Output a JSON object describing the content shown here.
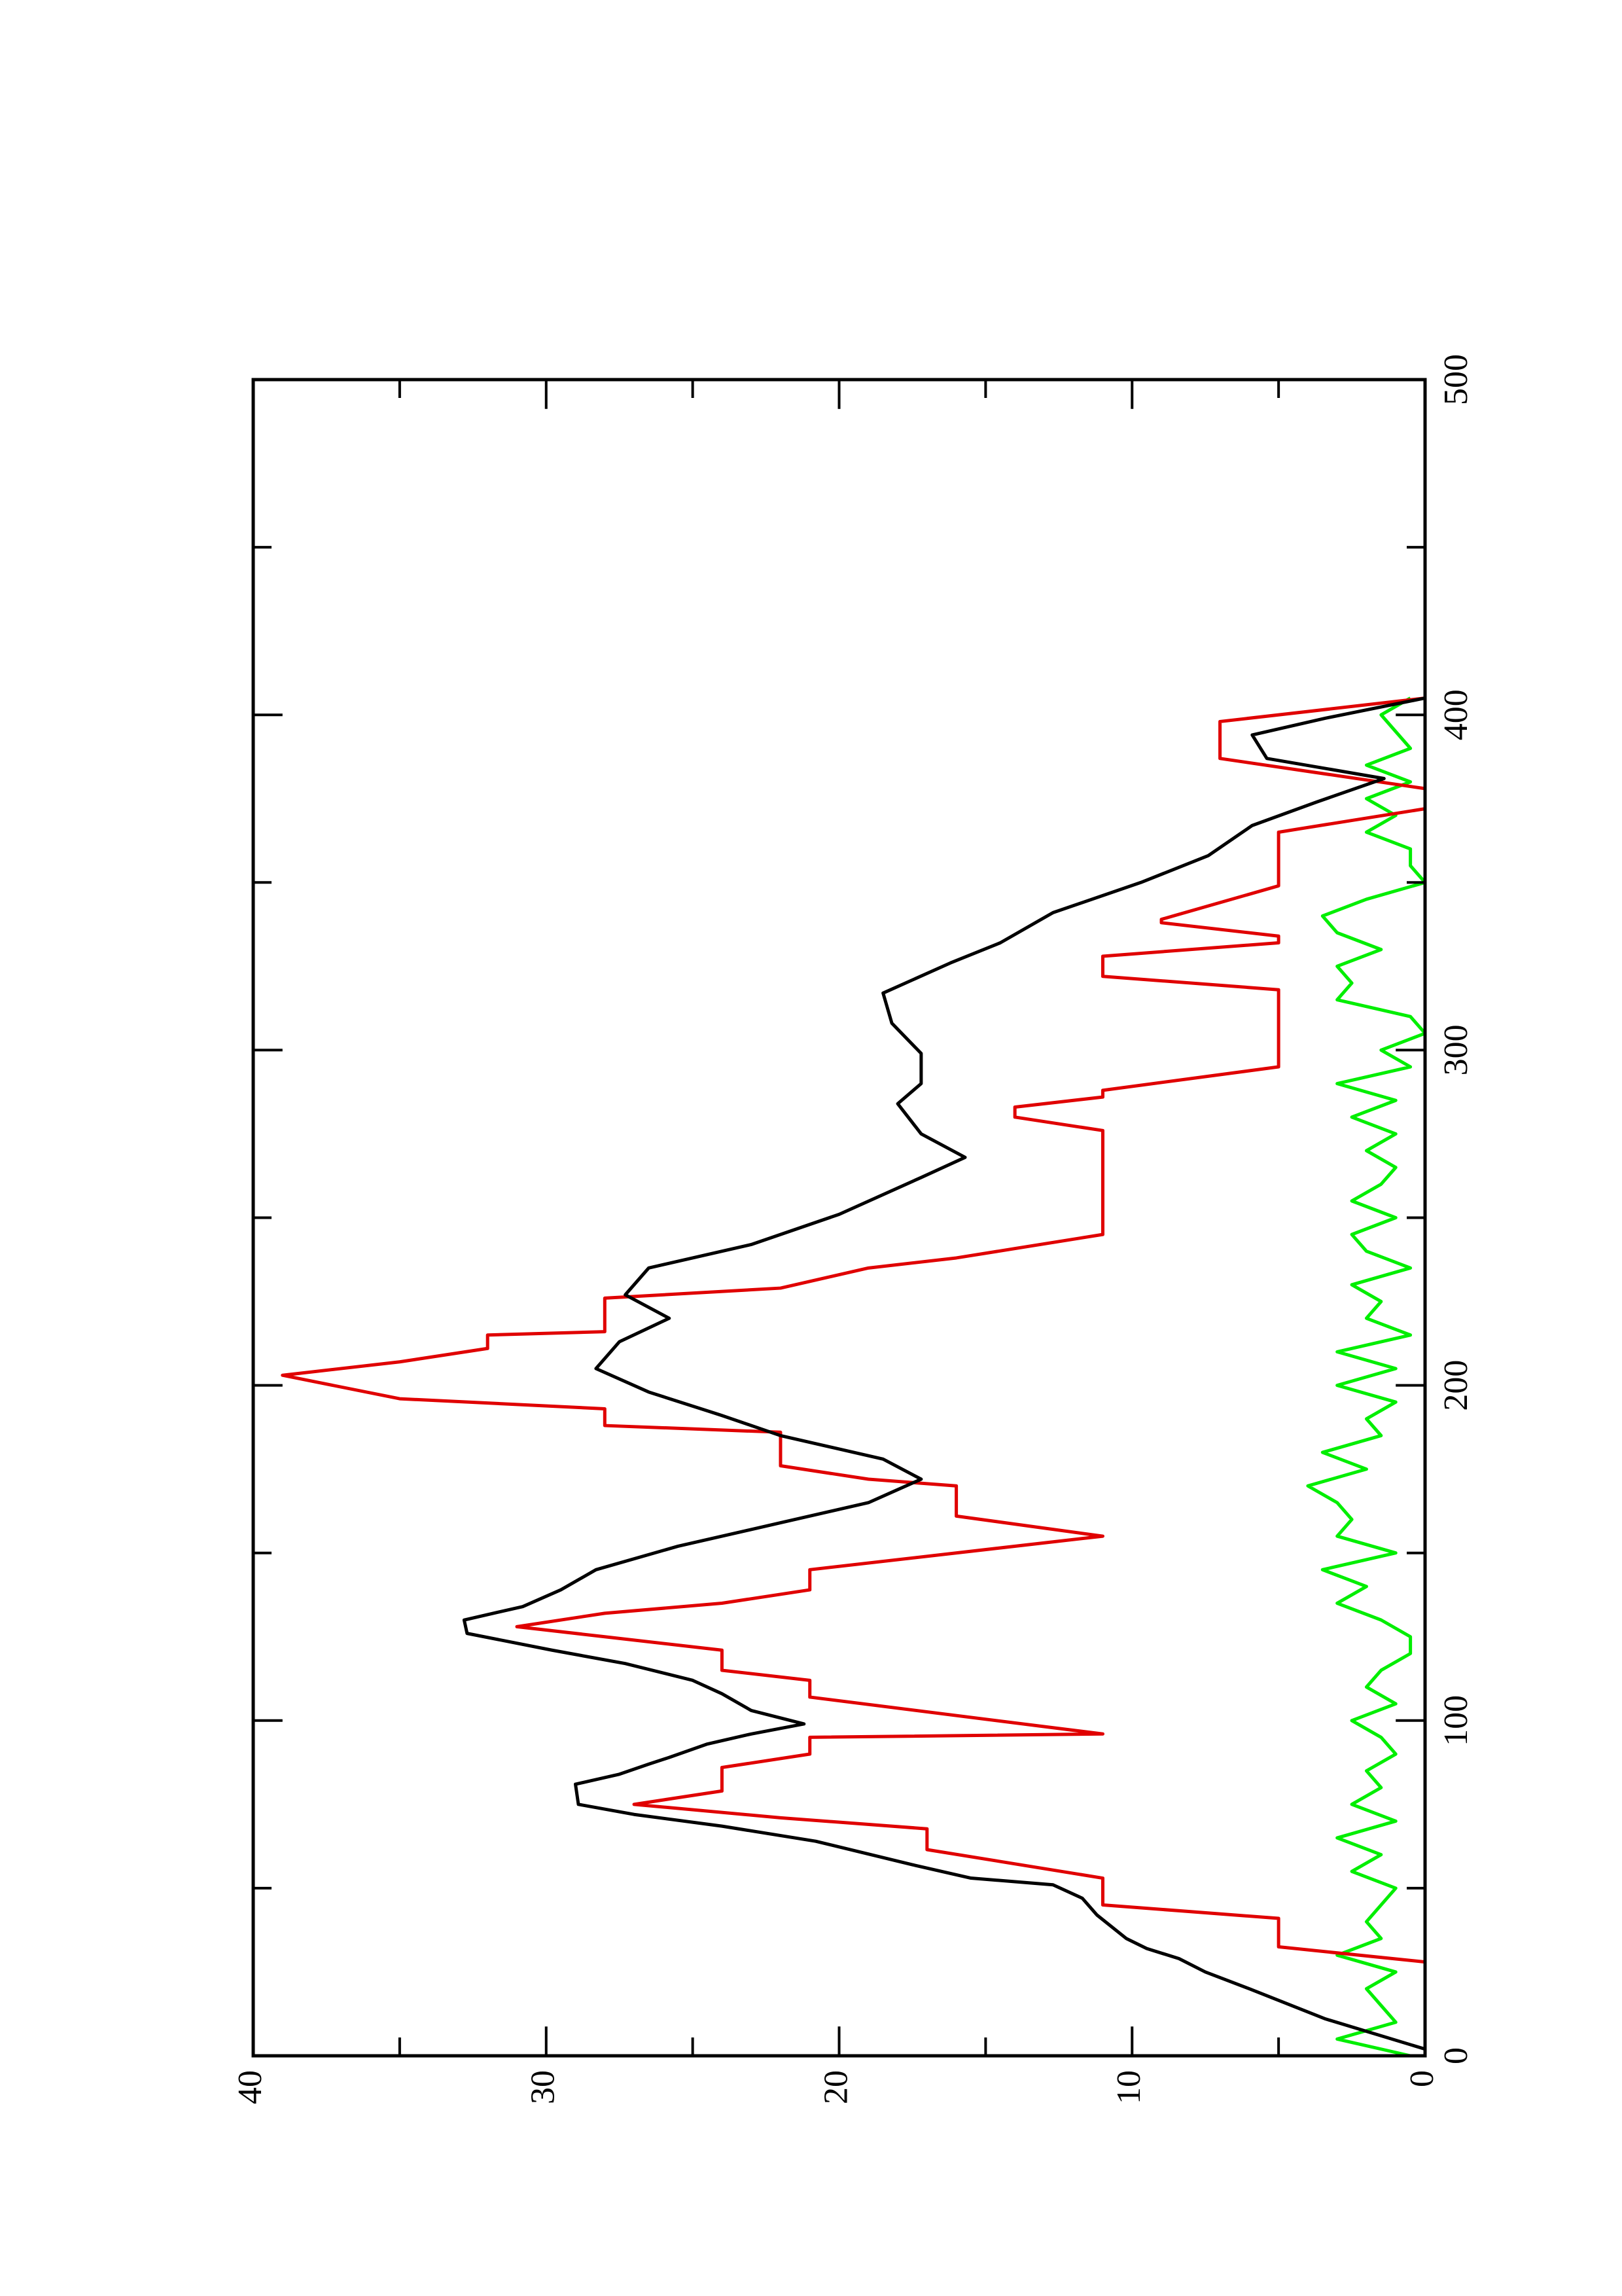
{
  "chart_data": {
    "type": "line",
    "xlim": [
      0,
      500
    ],
    "xticks": [
      0,
      100,
      200,
      300,
      400,
      500
    ],
    "xminorticks": [
      50,
      150,
      250,
      350,
      450
    ],
    "ylim": [
      0,
      40
    ],
    "yticks": [
      0,
      10,
      20,
      30,
      40
    ],
    "yminorticks": [
      5,
      15,
      25,
      35
    ],
    "series": [
      {
        "color": "#00ee00",
        "x": [
          0,
          5,
          10,
          15,
          20,
          25,
          30,
          35,
          40,
          45,
          50,
          55,
          60,
          65,
          70,
          75,
          80,
          85,
          90,
          95,
          100,
          105,
          110,
          115,
          120,
          125,
          130,
          135,
          140,
          145,
          150,
          155,
          160,
          165,
          170,
          175,
          180,
          185,
          190,
          195,
          200,
          205,
          210,
          215,
          220,
          225,
          230,
          235,
          240,
          245,
          250,
          255,
          260,
          265,
          270,
          275,
          280,
          285,
          290,
          295,
          300,
          305,
          310,
          315,
          320,
          325,
          330,
          335,
          340,
          345,
          350,
          355,
          360,
          365,
          370,
          375,
          380,
          385,
          390,
          395,
          400,
          405
        ],
        "values": [
          0.5,
          3,
          1,
          1.5,
          2,
          1,
          3,
          1.5,
          2,
          1.5,
          1,
          2.5,
          1.5,
          3,
          1,
          2.5,
          1.5,
          2,
          1,
          1.5,
          2.5,
          1,
          2,
          1.5,
          0.5,
          0.5,
          1.5,
          3,
          2,
          3.5,
          1,
          3,
          2.5,
          3,
          4,
          2,
          3.5,
          1.5,
          2,
          1,
          3,
          1,
          3,
          0.5,
          2,
          1.5,
          2.5,
          0.5,
          2,
          2.5,
          1,
          2.5,
          1.5,
          1,
          2,
          1,
          2.5,
          1,
          3,
          0.5,
          1.5,
          0,
          0.5,
          3,
          2.5,
          3,
          1.5,
          3,
          3.5,
          2,
          0,
          0.5,
          0.5,
          2,
          1,
          2,
          0.5,
          2,
          0.5,
          1,
          1.5,
          0.5
        ]
      },
      {
        "color": "#e00000",
        "x": [
          28,
          32.5,
          41,
          45,
          53,
          61.5,
          67.7,
          71,
          75,
          79,
          86,
          90,
          95,
          96,
          107,
          112,
          115,
          121,
          125,
          128,
          132,
          135,
          139,
          145,
          155,
          161,
          170,
          172,
          176,
          186,
          188,
          193,
          196,
          203,
          207,
          211,
          215,
          216,
          226,
          229,
          235,
          238,
          245,
          276,
          280,
          283,
          286,
          288,
          295,
          318,
          322,
          328,
          332,
          334,
          338,
          339,
          349,
          365,
          372,
          378,
          387,
          398,
          405
        ],
        "values": [
          0,
          5,
          5,
          11,
          11,
          17,
          17,
          22,
          27,
          24,
          24,
          21,
          21,
          11,
          21,
          21,
          24,
          24,
          28,
          31,
          28,
          24,
          21,
          21,
          11,
          16,
          16,
          19,
          22,
          22,
          28,
          28,
          35,
          39,
          35,
          32,
          32,
          28,
          28,
          22,
          19,
          16,
          11,
          11,
          14,
          14,
          11,
          11,
          5,
          5,
          11,
          11,
          5,
          5,
          9,
          9,
          5,
          5,
          0,
          0,
          7,
          7,
          0
        ]
      },
      {
        "color": "#000000",
        "x": [
          2,
          11,
          20,
          25,
          29,
          32,
          35,
          42,
          47,
          51,
          53,
          57,
          64,
          68.5,
          72,
          75,
          81,
          84,
          87,
          89,
          93,
          96,
          99,
          103,
          108,
          112,
          117,
          121,
          126,
          130,
          134,
          139,
          145,
          152,
          159,
          165,
          172,
          178,
          185,
          191,
          198,
          205,
          213,
          220,
          227,
          235,
          242,
          251,
          262,
          268,
          275,
          284,
          290,
          299,
          308,
          317,
          326,
          332,
          341,
          350,
          358,
          367,
          374,
          381,
          387,
          394,
          399,
          405
        ],
        "values": [
          0,
          3.4,
          6,
          7.5,
          8.4,
          9.5,
          10.2,
          11.2,
          11.7,
          12.7,
          15.5,
          17.5,
          20.8,
          24,
          27,
          28.9,
          29,
          27.5,
          26.5,
          25.8,
          24.5,
          23,
          21.2,
          23,
          24,
          25,
          27.3,
          29.8,
          32.7,
          32.8,
          30.8,
          29.5,
          28.3,
          25.5,
          22,
          19,
          17.2,
          18.5,
          22,
          24,
          26.5,
          28.3,
          27.5,
          25.8,
          27.3,
          26.5,
          23,
          20,
          17.2,
          15.7,
          17.2,
          18,
          17.2,
          17.2,
          18.2,
          18.5,
          16.2,
          14.5,
          12.7,
          9.7,
          7.4,
          5.9,
          3.7,
          1.4,
          5.4,
          5.9,
          3.4,
          0
        ]
      }
    ]
  }
}
